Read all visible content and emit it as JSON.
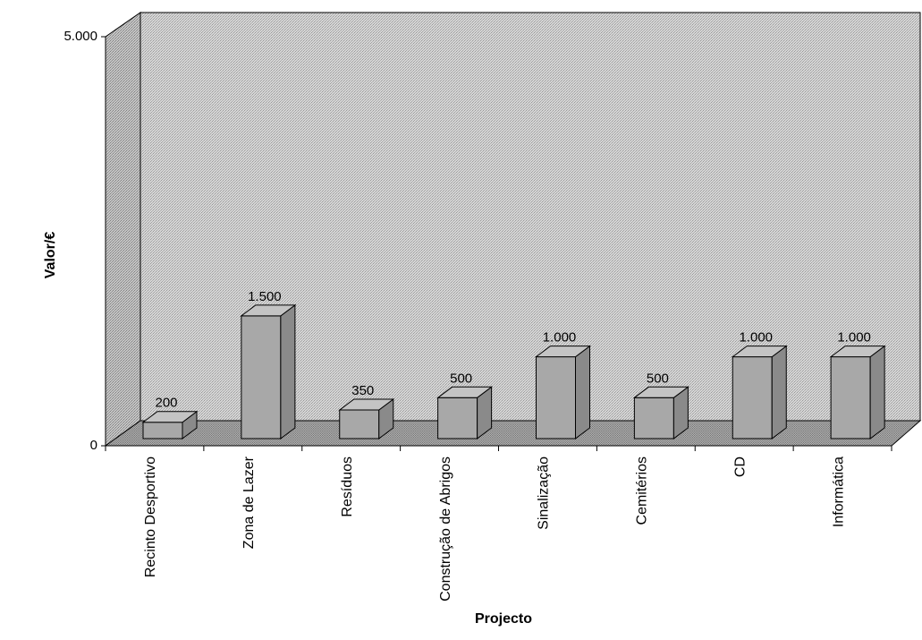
{
  "chart_data": {
    "type": "bar",
    "title": "",
    "xlabel": "Projecto",
    "ylabel": "Valor/€",
    "categories": [
      "Recinto Desportivo",
      "Zona de Lazer",
      "Resíduos",
      "Construção de Abrigos",
      "Sinalização",
      "Cemitérios",
      "CD",
      "Informática"
    ],
    "values": [
      200,
      1500,
      350,
      500,
      1000,
      500,
      1000,
      1000
    ],
    "value_labels": [
      "200",
      "1.500",
      "350",
      "500",
      "1.000",
      "500",
      "1.000",
      "1.000"
    ],
    "ylim": [
      0,
      5000
    ],
    "yticks": [
      0,
      5000
    ],
    "ytick_labels": [
      "0",
      "5.000"
    ],
    "grid": false,
    "legend": "none",
    "style": "3d-column",
    "colors": {
      "bar_front": "#a8a8a8",
      "bar_side": "#8a8a8a",
      "bar_top": "#c4c4c4",
      "wall": "#d4d4d4",
      "floor": "#9e9e9e"
    }
  }
}
